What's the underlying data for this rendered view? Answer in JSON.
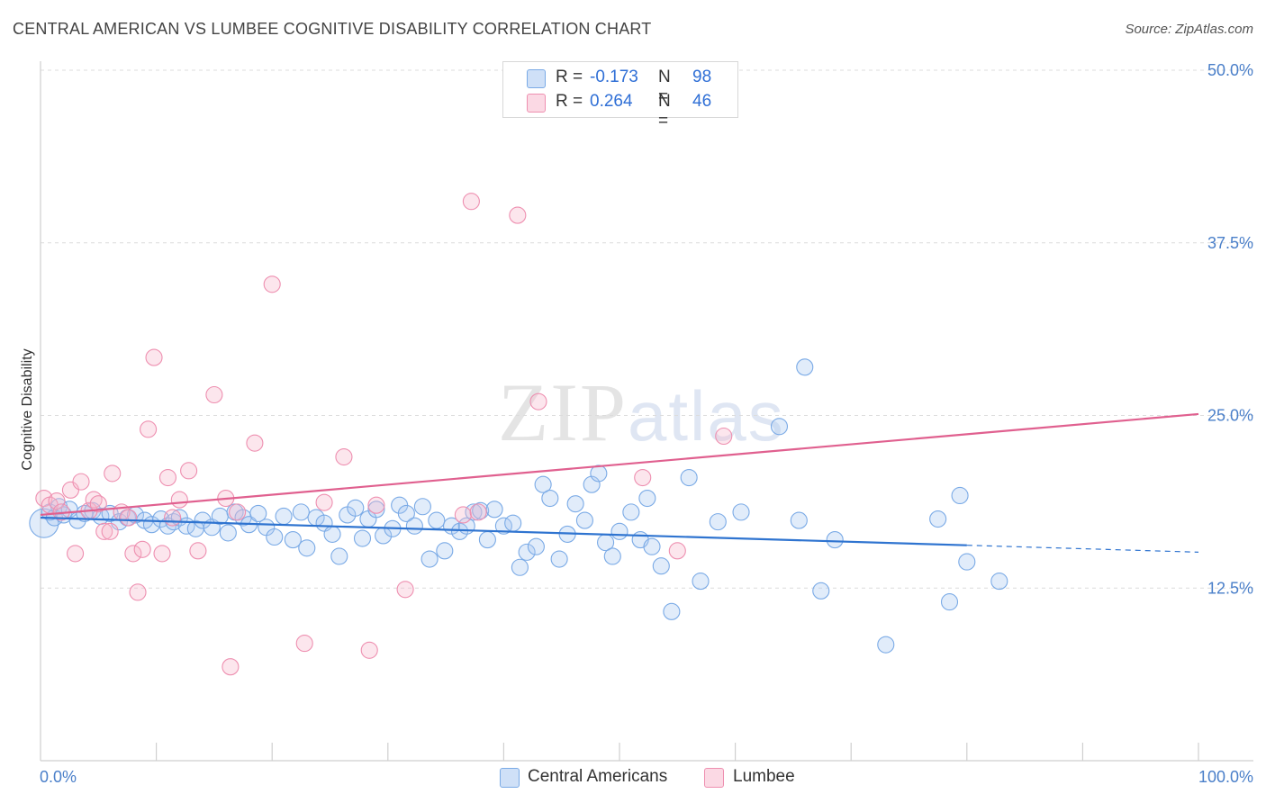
{
  "header": {
    "title": "CENTRAL AMERICAN VS LUMBEE COGNITIVE DISABILITY CORRELATION CHART",
    "source": "Source: ZipAtlas.com"
  },
  "watermark": {
    "zip": "ZIP",
    "atlas": "atlas"
  },
  "legend_top": {
    "rows": [
      {
        "r_label": "R =",
        "r_value": "-0.173",
        "n_label": "N =",
        "n_value": "98",
        "color": "#a9c8f0"
      },
      {
        "r_label": "R =",
        "r_value": "0.264",
        "n_label": "N =",
        "n_value": "46",
        "color": "#f6b8cc"
      }
    ]
  },
  "legend_bottom": {
    "items": [
      {
        "label": "Central Americans",
        "color": "#a9c8f0"
      },
      {
        "label": "Lumbee",
        "color": "#f6b8cc"
      }
    ]
  },
  "chart_data": {
    "type": "scatter",
    "ylabel": "Cognitive Disability",
    "xlim": [
      0,
      100
    ],
    "ylim": [
      0,
      50
    ],
    "x_tick_labels": [
      "0.0%",
      "100.0%"
    ],
    "y_ticks": [
      12.5,
      25.0,
      37.5,
      50.0
    ],
    "y_tick_labels": [
      "12.5%",
      "25.0%",
      "37.5%",
      "50.0%"
    ],
    "grid": "horizontal dashed",
    "series": [
      {
        "name": "Central Americans",
        "color": "#7aaae6",
        "trend": {
          "y_at_0": 17.6,
          "y_at_100": 15.1,
          "solid_until_x": 80
        },
        "points": [
          [
            0.3,
            17.2,
            2
          ],
          [
            0.8,
            18.0,
            1
          ],
          [
            1.2,
            17.6,
            1
          ],
          [
            1.6,
            18.4,
            1
          ],
          [
            2.0,
            17.8,
            1
          ],
          [
            2.5,
            18.2,
            1
          ],
          [
            3.2,
            17.4,
            1
          ],
          [
            3.8,
            17.9,
            1
          ],
          [
            4.5,
            18.1,
            1
          ],
          [
            5.2,
            17.7,
            1
          ],
          [
            6.0,
            17.9,
            1
          ],
          [
            6.8,
            17.3,
            1
          ],
          [
            7.5,
            17.6,
            1
          ],
          [
            8.2,
            17.8,
            1
          ],
          [
            9.0,
            17.4,
            1
          ],
          [
            9.6,
            17.1,
            1
          ],
          [
            10.4,
            17.5,
            1
          ],
          [
            11.0,
            17.0,
            1
          ],
          [
            11.5,
            17.3,
            1
          ],
          [
            12.0,
            17.6,
            1
          ],
          [
            12.6,
            17.0,
            1
          ],
          [
            13.4,
            16.8,
            1
          ],
          [
            14.0,
            17.4,
            1
          ],
          [
            14.8,
            16.9,
            1
          ],
          [
            15.5,
            17.7,
            1
          ],
          [
            16.2,
            16.5,
            1
          ],
          [
            16.8,
            18.0,
            1
          ],
          [
            17.5,
            17.6,
            1
          ],
          [
            18.0,
            17.1,
            1
          ],
          [
            18.8,
            17.9,
            1
          ],
          [
            19.5,
            16.9,
            1
          ],
          [
            20.2,
            16.2,
            1
          ],
          [
            21.0,
            17.7,
            1
          ],
          [
            21.8,
            16.0,
            1
          ],
          [
            22.5,
            18.0,
            1
          ],
          [
            23.0,
            15.4,
            1
          ],
          [
            23.8,
            17.6,
            1
          ],
          [
            24.5,
            17.2,
            1
          ],
          [
            25.2,
            16.4,
            1
          ],
          [
            25.8,
            14.8,
            1
          ],
          [
            26.5,
            17.8,
            1
          ],
          [
            27.2,
            18.3,
            1
          ],
          [
            27.8,
            16.1,
            1
          ],
          [
            28.3,
            17.5,
            1
          ],
          [
            29.0,
            18.2,
            1
          ],
          [
            29.6,
            16.3,
            1
          ],
          [
            30.4,
            16.8,
            1
          ],
          [
            31.0,
            18.5,
            1
          ],
          [
            31.6,
            17.9,
            1
          ],
          [
            32.3,
            17.0,
            1
          ],
          [
            33.0,
            18.4,
            1
          ],
          [
            33.6,
            14.6,
            1
          ],
          [
            34.2,
            17.4,
            1
          ],
          [
            34.9,
            15.2,
            1
          ],
          [
            35.5,
            17.0,
            1
          ],
          [
            36.2,
            16.6,
            1
          ],
          [
            36.8,
            17.0,
            1
          ],
          [
            37.4,
            18.0,
            1
          ],
          [
            38.0,
            18.1,
            1
          ],
          [
            38.6,
            16.0,
            1
          ],
          [
            39.2,
            18.2,
            1
          ],
          [
            40.0,
            17.0,
            1
          ],
          [
            40.8,
            17.2,
            1
          ],
          [
            41.4,
            14.0,
            1
          ],
          [
            42.0,
            15.1,
            1
          ],
          [
            42.8,
            15.5,
            1
          ],
          [
            43.4,
            20.0,
            1
          ],
          [
            44.0,
            19.0,
            1
          ],
          [
            44.8,
            14.6,
            1
          ],
          [
            45.5,
            16.4,
            1
          ],
          [
            46.2,
            18.6,
            1
          ],
          [
            47.0,
            17.4,
            1
          ],
          [
            47.6,
            20.0,
            1
          ],
          [
            48.2,
            20.8,
            1
          ],
          [
            48.8,
            15.8,
            1
          ],
          [
            49.4,
            14.8,
            1
          ],
          [
            50.0,
            16.6,
            1
          ],
          [
            51.0,
            18.0,
            1
          ],
          [
            51.8,
            16.0,
            1
          ],
          [
            52.4,
            19.0,
            1
          ],
          [
            52.8,
            15.5,
            1
          ],
          [
            53.6,
            14.1,
            1
          ],
          [
            54.5,
            10.8,
            1
          ],
          [
            56.0,
            20.5,
            1
          ],
          [
            57.0,
            13.0,
            1
          ],
          [
            58.5,
            17.3,
            1
          ],
          [
            60.5,
            18.0,
            1
          ],
          [
            63.8,
            24.2,
            1
          ],
          [
            65.5,
            17.4,
            1
          ],
          [
            66.0,
            28.5,
            1
          ],
          [
            67.4,
            12.3,
            1
          ],
          [
            68.6,
            16.0,
            1
          ],
          [
            73.0,
            8.4,
            1
          ],
          [
            77.5,
            17.5,
            1
          ],
          [
            78.5,
            11.5,
            1
          ],
          [
            79.4,
            19.2,
            1
          ],
          [
            80.0,
            14.4,
            1
          ],
          [
            82.8,
            13.0,
            1
          ]
        ]
      },
      {
        "name": "Lumbee",
        "color": "#ee8fb0",
        "trend": {
          "y_at_0": 17.8,
          "y_at_100": 25.1
        },
        "points": [
          [
            0.3,
            19.0,
            1
          ],
          [
            0.8,
            18.5,
            1
          ],
          [
            1.4,
            18.8,
            1
          ],
          [
            1.8,
            18.0,
            1
          ],
          [
            2.6,
            19.6,
            1
          ],
          [
            3.0,
            15.0,
            1
          ],
          [
            3.5,
            20.2,
            1
          ],
          [
            4.2,
            18.1,
            1
          ],
          [
            4.6,
            18.9,
            1
          ],
          [
            5.0,
            18.6,
            1
          ],
          [
            5.5,
            16.6,
            1
          ],
          [
            6.0,
            16.6,
            1
          ],
          [
            6.2,
            20.8,
            1
          ],
          [
            7.0,
            18.0,
            1
          ],
          [
            7.6,
            17.6,
            1
          ],
          [
            8.0,
            15.0,
            1
          ],
          [
            8.4,
            12.2,
            1
          ],
          [
            8.8,
            15.3,
            1
          ],
          [
            9.3,
            24.0,
            1
          ],
          [
            9.8,
            29.2,
            1
          ],
          [
            10.5,
            15.0,
            1
          ],
          [
            11.0,
            20.5,
            1
          ],
          [
            11.4,
            17.6,
            1
          ],
          [
            12.0,
            18.9,
            1
          ],
          [
            12.8,
            21.0,
            1
          ],
          [
            13.6,
            15.2,
            1
          ],
          [
            15.0,
            26.5,
            1
          ],
          [
            16.0,
            19.0,
            1
          ],
          [
            16.4,
            6.8,
            1
          ],
          [
            17.0,
            18.0,
            1
          ],
          [
            18.5,
            23.0,
            1
          ],
          [
            20.0,
            34.5,
            1
          ],
          [
            22.8,
            8.5,
            1
          ],
          [
            24.5,
            18.7,
            1
          ],
          [
            26.2,
            22.0,
            1
          ],
          [
            28.4,
            8.0,
            1
          ],
          [
            29.0,
            18.5,
            1
          ],
          [
            31.5,
            12.4,
            1
          ],
          [
            36.5,
            17.8,
            1
          ],
          [
            37.2,
            40.5,
            1
          ],
          [
            37.8,
            18.0,
            1
          ],
          [
            41.2,
            39.5,
            1
          ],
          [
            43.0,
            26.0,
            1
          ],
          [
            52.0,
            20.5,
            1
          ],
          [
            55.0,
            15.2,
            1
          ],
          [
            59.0,
            23.5,
            1
          ]
        ]
      }
    ]
  }
}
